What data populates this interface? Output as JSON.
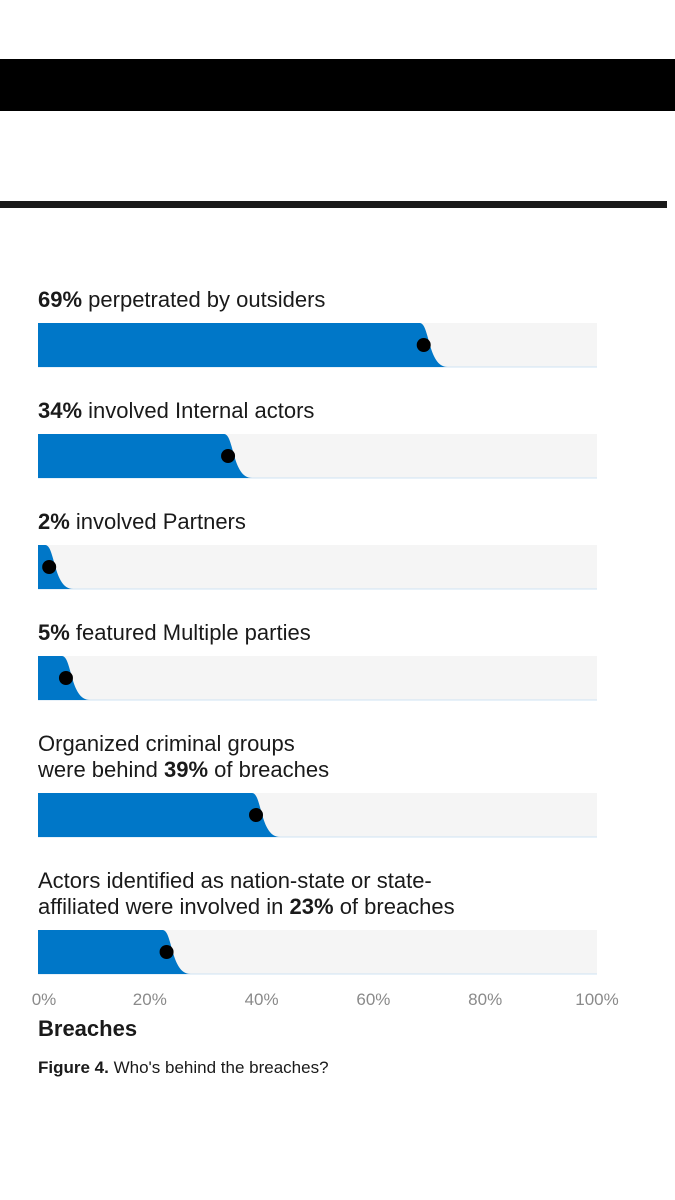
{
  "chart_data": {
    "type": "bar",
    "orientation": "horizontal",
    "items": [
      {
        "lines": [
          [
            {
              "t": "69%",
              "b": true
            },
            {
              "t": " perpetrated by outsiders",
              "b": false
            }
          ]
        ],
        "value": 69
      },
      {
        "lines": [
          [
            {
              "t": "34%",
              "b": true
            },
            {
              "t": " involved Internal actors",
              "b": false
            }
          ]
        ],
        "value": 34
      },
      {
        "lines": [
          [
            {
              "t": "2%",
              "b": true
            },
            {
              "t": " involved Partners",
              "b": false
            }
          ]
        ],
        "value": 2
      },
      {
        "lines": [
          [
            {
              "t": "5%",
              "b": true
            },
            {
              "t": " featured Multiple parties",
              "b": false
            }
          ]
        ],
        "value": 5
      },
      {
        "lines": [
          [
            {
              "t": "Organized criminal groups",
              "b": false
            }
          ],
          [
            {
              "t": "were behind ",
              "b": false
            },
            {
              "t": "39%",
              "b": true
            },
            {
              "t": " of breaches",
              "b": false
            }
          ]
        ],
        "value": 39
      },
      {
        "lines": [
          [
            {
              "t": "Actors identified as nation-state or state-",
              "b": false
            }
          ],
          [
            {
              "t": "affiliated were involved in ",
              "b": false
            },
            {
              "t": "23%",
              "b": true
            },
            {
              "t": " of breaches",
              "b": false
            }
          ]
        ],
        "value": 23
      }
    ],
    "xlim": [
      0,
      100
    ],
    "xticks": [
      "0%",
      "20%",
      "40%",
      "60%",
      "80%",
      "100%"
    ],
    "xlabel": "Breaches",
    "colors": {
      "bar": "#0077c8",
      "track": "#f5f5f5",
      "marker": "#000000"
    }
  },
  "caption": {
    "figure": "Figure 4.",
    "text": " Who's behind the breaches?"
  }
}
